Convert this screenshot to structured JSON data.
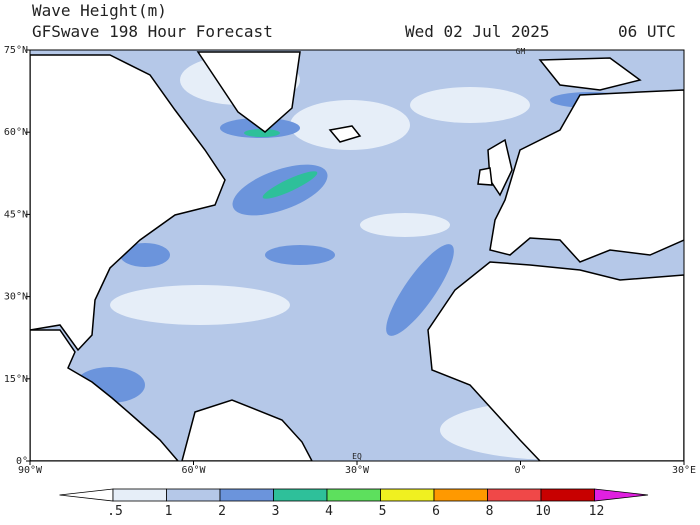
{
  "header": {
    "title": "Wave Height(m)",
    "subtitle": "GFSwave 198 Hour Forecast",
    "date": "Wed 02 Jul 2025",
    "time": "06 UTC"
  },
  "map": {
    "lon_range": [
      -90,
      30
    ],
    "lat_range": [
      0,
      75
    ],
    "lon_ticks": [
      {
        "value": -90,
        "label": "90°W"
      },
      {
        "value": -60,
        "label": "60°W"
      },
      {
        "value": -30,
        "label": "30°W"
      },
      {
        "value": 0,
        "label": "0°"
      },
      {
        "value": 30,
        "label": "30°E"
      }
    ],
    "lat_ticks": [
      {
        "value": 75,
        "label": "75°N"
      },
      {
        "value": 60,
        "label": "60°N"
      },
      {
        "value": 45,
        "label": "45°N"
      },
      {
        "value": 30,
        "label": "30°N"
      },
      {
        "value": 15,
        "label": "15°N"
      },
      {
        "value": 0,
        "label": "0°"
      }
    ],
    "markers": [
      {
        "label": "GM",
        "lon": 0,
        "lat": 75
      },
      {
        "label": "EQ",
        "lon": -30,
        "lat": 0
      }
    ]
  },
  "colorbar": {
    "levels": [
      {
        "value": 0.5,
        "label": ".5"
      },
      1,
      2,
      3,
      4,
      5,
      6,
      8,
      10,
      12
    ],
    "colors": [
      "#ffffff",
      "#e6eef8",
      "#b5c8e8",
      "#6b94dc",
      "#2ec09a",
      "#5de05d",
      "#f0f020",
      "#ff9900",
      "#f04848",
      "#c80000",
      "#e020e0"
    ]
  }
}
